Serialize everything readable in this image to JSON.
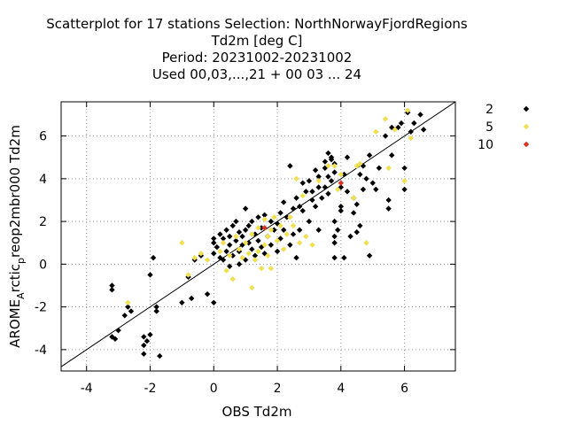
{
  "chart_data": {
    "type": "scatter",
    "title_lines": [
      "Scatterplot for   17 stations Selection: NorthNorwayFjordRegions",
      "Td2m [deg C]",
      "Period: 20231002-20231002",
      "Used  00,03,...,21  + 00 03 ... 24"
    ],
    "xlabel": "OBS Td2m",
    "ylabel": "AROME_Arctic_prep2mbr000 Td2m",
    "ylabel_parts": {
      "pre": "AROME",
      "sub1": "A",
      "mid": "rctic",
      "sub2": "p",
      "post": "reop2mbr000 Td2m"
    },
    "xlim": [
      -4.8,
      7.6
    ],
    "ylim": [
      -5.0,
      7.6
    ],
    "xticks": [
      "-4",
      "-2",
      "0",
      "2",
      "4",
      "6"
    ],
    "yticks": [
      "-4",
      "-2",
      "0",
      "2",
      "4",
      "6"
    ],
    "grid": true,
    "diagonal": true,
    "legend_position": "right",
    "series": [
      {
        "name": "2",
        "color": "#000000",
        "points": [
          [
            -3.2,
            -1.0
          ],
          [
            -3.2,
            -1.2
          ],
          [
            -3.2,
            -3.4
          ],
          [
            -3.1,
            -3.5
          ],
          [
            -3.0,
            -3.1
          ],
          [
            -2.8,
            -2.4
          ],
          [
            -2.7,
            -2.0
          ],
          [
            -2.6,
            -2.2
          ],
          [
            -2.2,
            -3.4
          ],
          [
            -2.2,
            -3.8
          ],
          [
            -2.2,
            -4.2
          ],
          [
            -2.1,
            -3.6
          ],
          [
            -2.0,
            -3.3
          ],
          [
            -2.0,
            -0.5
          ],
          [
            -1.9,
            0.3
          ],
          [
            -1.8,
            -2.2
          ],
          [
            -1.8,
            -2.0
          ],
          [
            -1.7,
            -4.3
          ],
          [
            -1.0,
            -1.8
          ],
          [
            -0.8,
            -0.6
          ],
          [
            -0.7,
            -1.6
          ],
          [
            -0.6,
            0.2
          ],
          [
            -0.4,
            0.4
          ],
          [
            -0.2,
            -1.4
          ],
          [
            0.0,
            -1.8
          ],
          [
            0.0,
            1.2
          ],
          [
            0.0,
            1.0
          ],
          [
            0.0,
            0.5
          ],
          [
            0.1,
            0.8
          ],
          [
            0.2,
            1.4
          ],
          [
            0.2,
            0.3
          ],
          [
            0.3,
            1.2
          ],
          [
            0.3,
            0.2
          ],
          [
            0.4,
            1.6
          ],
          [
            0.4,
            0.6
          ],
          [
            0.5,
            0.9
          ],
          [
            0.5,
            1.3
          ],
          [
            0.5,
            -0.1
          ],
          [
            0.6,
            1.8
          ],
          [
            0.6,
            0.4
          ],
          [
            0.7,
            1.1
          ],
          [
            0.7,
            2.0
          ],
          [
            0.8,
            0.6
          ],
          [
            0.8,
            1.5
          ],
          [
            0.8,
            0.0
          ],
          [
            0.9,
            1.3
          ],
          [
            0.9,
            0.9
          ],
          [
            1.0,
            1.6
          ],
          [
            1.0,
            0.2
          ],
          [
            1.0,
            2.6
          ],
          [
            1.1,
            1.0
          ],
          [
            1.1,
            1.8
          ],
          [
            1.2,
            0.7
          ],
          [
            1.2,
            2.0
          ],
          [
            1.3,
            1.4
          ],
          [
            1.3,
            0.4
          ],
          [
            1.4,
            2.2
          ],
          [
            1.4,
            1.1
          ],
          [
            1.5,
            0.8
          ],
          [
            1.5,
            1.7
          ],
          [
            1.6,
            2.3
          ],
          [
            1.6,
            0.5
          ],
          [
            1.7,
            1.3
          ],
          [
            1.8,
            2.0
          ],
          [
            1.8,
            0.9
          ],
          [
            1.9,
            1.6
          ],
          [
            2.0,
            0.6
          ],
          [
            2.0,
            1.9
          ],
          [
            2.1,
            2.4
          ],
          [
            2.1,
            1.2
          ],
          [
            2.2,
            2.9
          ],
          [
            2.2,
            1.6
          ],
          [
            2.3,
            2.2
          ],
          [
            2.4,
            0.9
          ],
          [
            2.4,
            4.6
          ],
          [
            2.5,
            2.6
          ],
          [
            2.5,
            1.4
          ],
          [
            2.6,
            3.1
          ],
          [
            2.6,
            0.3
          ],
          [
            2.7,
            1.6
          ],
          [
            2.7,
            2.7
          ],
          [
            2.8,
            3.8
          ],
          [
            2.8,
            2.5
          ],
          [
            2.9,
            3.4
          ],
          [
            3.0,
            2.0
          ],
          [
            3.0,
            3.9
          ],
          [
            3.1,
            3.0
          ],
          [
            3.1,
            3.4
          ],
          [
            3.2,
            4.4
          ],
          [
            3.2,
            2.7
          ],
          [
            3.3,
            3.6
          ],
          [
            3.3,
            4.1
          ],
          [
            3.3,
            1.6
          ],
          [
            3.4,
            3.1
          ],
          [
            3.5,
            4.8
          ],
          [
            3.5,
            3.6
          ],
          [
            3.5,
            4.5
          ],
          [
            3.6,
            5.2
          ],
          [
            3.6,
            4.1
          ],
          [
            3.6,
            3.3
          ],
          [
            3.7,
            4.9
          ],
          [
            3.7,
            5.0
          ],
          [
            3.7,
            3.9
          ],
          [
            3.8,
            4.7
          ],
          [
            3.8,
            4.3
          ],
          [
            3.8,
            1.0
          ],
          [
            3.8,
            2.0
          ],
          [
            3.8,
            1.3
          ],
          [
            3.8,
            0.3
          ],
          [
            3.9,
            1.6
          ],
          [
            4.0,
            2.7
          ],
          [
            4.0,
            3.6
          ],
          [
            4.0,
            2.5
          ],
          [
            4.1,
            4.2
          ],
          [
            4.1,
            0.3
          ],
          [
            4.2,
            3.4
          ],
          [
            4.2,
            5.0
          ],
          [
            4.3,
            1.3
          ],
          [
            4.4,
            3.1
          ],
          [
            4.4,
            2.4
          ],
          [
            4.5,
            2.8
          ],
          [
            4.5,
            1.5
          ],
          [
            4.6,
            1.8
          ],
          [
            4.6,
            4.2
          ],
          [
            4.7,
            3.5
          ],
          [
            4.7,
            4.6
          ],
          [
            4.8,
            4.0
          ],
          [
            4.9,
            5.1
          ],
          [
            4.9,
            0.4
          ],
          [
            5.0,
            3.8
          ],
          [
            5.1,
            3.5
          ],
          [
            5.2,
            4.5
          ],
          [
            5.4,
            6.0
          ],
          [
            5.5,
            3.0
          ],
          [
            5.5,
            2.6
          ],
          [
            5.6,
            6.4
          ],
          [
            5.6,
            5.1
          ],
          [
            5.8,
            6.4
          ],
          [
            5.9,
            6.6
          ],
          [
            6.0,
            4.5
          ],
          [
            6.0,
            3.5
          ],
          [
            6.1,
            7.1
          ],
          [
            6.2,
            6.2
          ],
          [
            6.3,
            6.6
          ],
          [
            6.5,
            7.0
          ],
          [
            6.6,
            6.3
          ]
        ]
      },
      {
        "name": "5",
        "color": "#f0e050",
        "points": [
          [
            -2.7,
            -1.8
          ],
          [
            -1.0,
            1.0
          ],
          [
            -0.8,
            -0.5
          ],
          [
            -0.6,
            0.3
          ],
          [
            -0.4,
            0.5
          ],
          [
            -0.2,
            0.2
          ],
          [
            0.2,
            0.6
          ],
          [
            0.3,
            1.0
          ],
          [
            0.4,
            -0.3
          ],
          [
            0.5,
            0.4
          ],
          [
            0.6,
            -0.7
          ],
          [
            0.7,
            1.3
          ],
          [
            0.8,
            0.7
          ],
          [
            0.9,
            0.3
          ],
          [
            1.0,
            1.0
          ],
          [
            1.1,
            0.5
          ],
          [
            1.2,
            1.4
          ],
          [
            1.2,
            -1.1
          ],
          [
            1.3,
            0.2
          ],
          [
            1.4,
            1.7
          ],
          [
            1.4,
            0.6
          ],
          [
            1.5,
            -0.2
          ],
          [
            1.6,
            0.9
          ],
          [
            1.6,
            2.1
          ],
          [
            1.7,
            1.3
          ],
          [
            1.7,
            0.4
          ],
          [
            1.8,
            1.6
          ],
          [
            1.8,
            -0.2
          ],
          [
            1.9,
            2.2
          ],
          [
            2.0,
            1.1
          ],
          [
            2.1,
            1.8
          ],
          [
            2.2,
            0.7
          ],
          [
            2.3,
            1.4
          ],
          [
            2.4,
            2.2
          ],
          [
            2.5,
            1.8
          ],
          [
            2.6,
            4.0
          ],
          [
            2.7,
            1.0
          ],
          [
            2.8,
            3.2
          ],
          [
            2.9,
            1.3
          ],
          [
            3.1,
            0.9
          ],
          [
            3.3,
            3.9
          ],
          [
            3.6,
            4.6
          ],
          [
            3.8,
            4.6
          ],
          [
            3.9,
            3.5
          ],
          [
            4.0,
            4.2
          ],
          [
            4.4,
            3.1
          ],
          [
            4.5,
            4.6
          ],
          [
            4.6,
            4.7
          ],
          [
            4.8,
            1.0
          ],
          [
            5.1,
            6.2
          ],
          [
            5.4,
            6.8
          ],
          [
            5.5,
            4.5
          ],
          [
            5.7,
            6.3
          ],
          [
            6.0,
            3.9
          ],
          [
            6.1,
            7.2
          ],
          [
            6.2,
            5.9
          ]
        ]
      },
      {
        "name": "10",
        "color": "#e03020",
        "points": [
          [
            1.6,
            1.7
          ],
          [
            4.0,
            3.8
          ]
        ]
      }
    ]
  }
}
